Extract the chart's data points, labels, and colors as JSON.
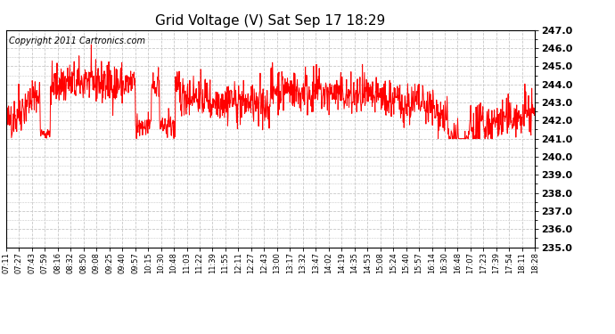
{
  "title": "Grid Voltage (V) Sat Sep 17 18:29",
  "copyright": "Copyright 2011 Cartronics.com",
  "line_color": "#ff0000",
  "bg_color": "#ffffff",
  "plot_bg_color": "#ffffff",
  "grid_color": "#c8c8c8",
  "ylim": [
    235.0,
    247.0
  ],
  "yticks": [
    235.0,
    236.0,
    237.0,
    238.0,
    239.0,
    240.0,
    241.0,
    242.0,
    243.0,
    244.0,
    245.0,
    246.0,
    247.0
  ],
  "xtick_labels": [
    "07:11",
    "07:27",
    "07:43",
    "07:59",
    "08:16",
    "08:32",
    "08:50",
    "09:08",
    "09:25",
    "09:40",
    "09:57",
    "10:15",
    "10:30",
    "10:48",
    "11:03",
    "11:22",
    "11:39",
    "11:55",
    "12:11",
    "12:27",
    "12:43",
    "13:00",
    "13:17",
    "13:32",
    "13:47",
    "14:02",
    "14:19",
    "14:35",
    "14:53",
    "15:08",
    "15:24",
    "15:40",
    "15:57",
    "16:14",
    "16:30",
    "16:48",
    "17:07",
    "17:23",
    "17:39",
    "17:54",
    "18:11",
    "18:28"
  ],
  "seed": 42,
  "n_points": 1300,
  "line_width": 0.7,
  "title_fontsize": 11,
  "ytick_fontsize": 8,
  "xtick_fontsize": 6,
  "copyright_fontsize": 7
}
